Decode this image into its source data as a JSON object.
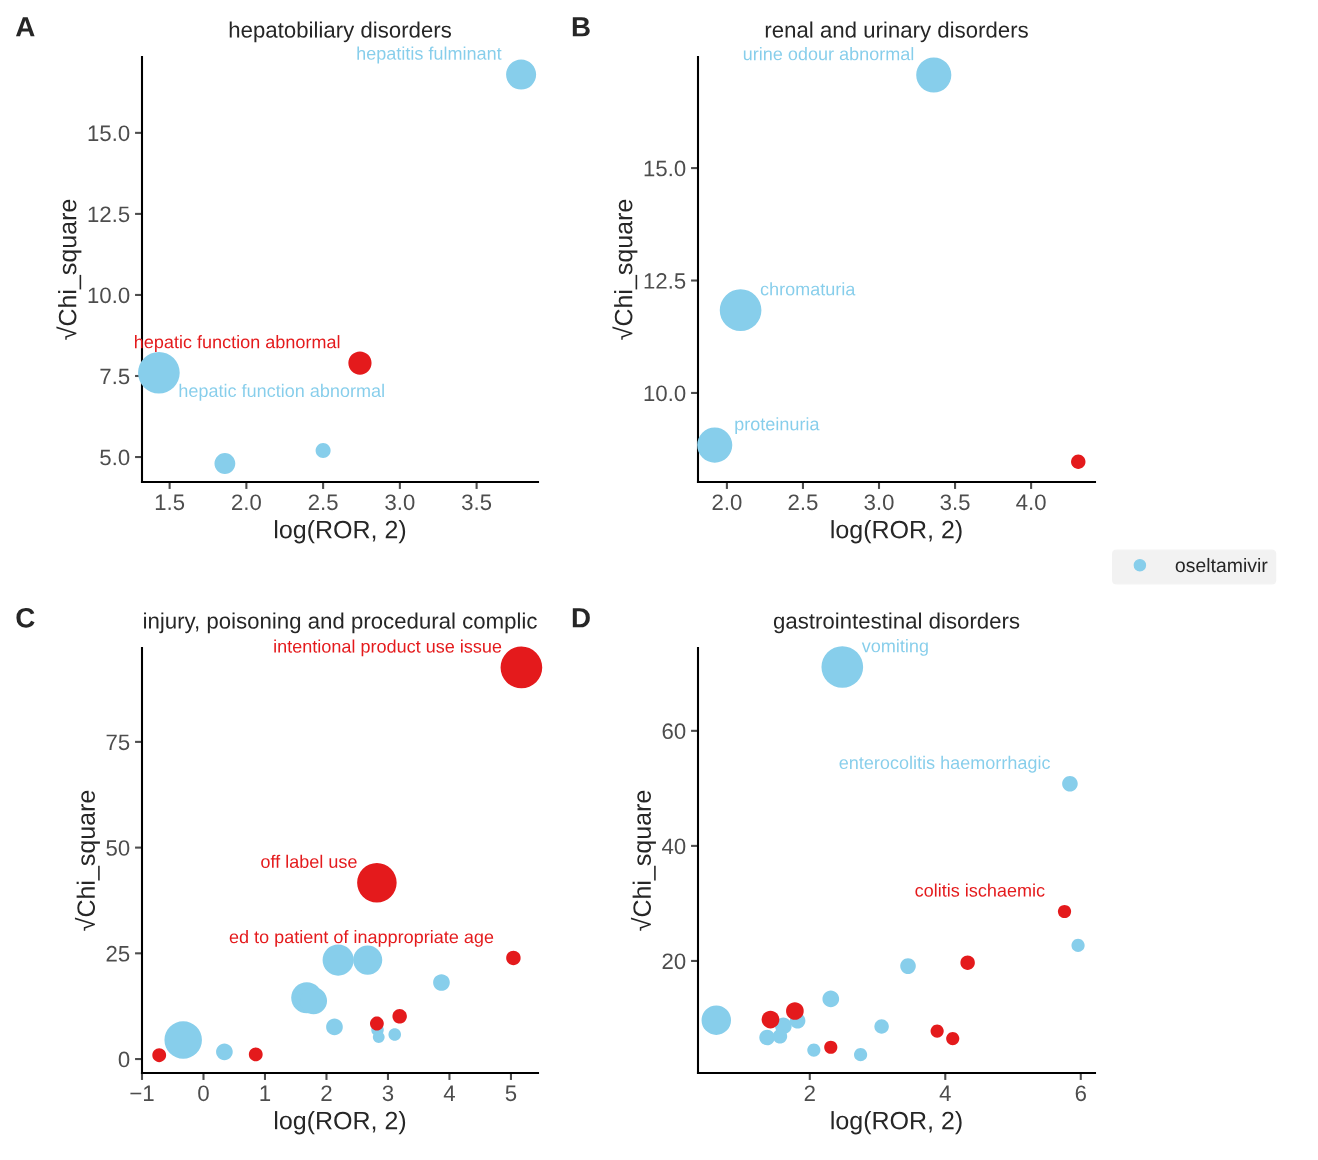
{
  "chart_data": [
    {
      "type": "bubble",
      "title": "hepatobiliary disorders",
      "xlabel": "log(ROR, 2)",
      "ylabel": "√Chi_square",
      "xlim": [
        1.32,
        3.9
      ],
      "xticks": [
        1.5,
        {
          "value": 2,
          "label": "2.0"
        },
        2.5,
        {
          "value": 3,
          "label": "3.0"
        },
        3.5
      ],
      "ylim": [
        4.23,
        17.34
      ],
      "yticks": [
        {
          "value": 5,
          "label": "5.0"
        },
        7.5,
        {
          "value": 10,
          "label": "10.0"
        },
        12.5,
        {
          "value": 15,
          "label": "15.0"
        }
      ],
      "grid": false,
      "series": [
        {
          "name": "oseltamivir",
          "color": "#87ceeb",
          "x": [
            1.43,
            1.86,
            2.5,
            3.79
          ],
          "values": [
            7.6,
            4.8,
            5.2,
            16.8
          ],
          "sizes": [
            1,
            0.25,
            0.13,
            0.52
          ]
        },
        {
          "color": "#e41a1c",
          "x": [
            2.74
          ],
          "values": [
            7.9
          ],
          "sizes": [
            0.31
          ]
        }
      ],
      "annotations": [
        "A",
        {
          "text": "hepatitis fulminant",
          "x": 3.79,
          "y": 16.8
        },
        {
          "text": "hepatic function abnormal",
          "x": 2.74,
          "y": 7.9
        },
        {
          "text": "hepatic function abnormal",
          "x": 1.43,
          "y": 7.6
        }
      ]
    },
    {
      "type": "bubble",
      "title": "renal and urinary disorders",
      "xlabel": "log(ROR, 2)",
      "ylabel": "√Chi_square",
      "xlim": [
        1.81,
        4.42
      ],
      "xticks": [
        {
          "value": 2,
          "label": "2.0"
        },
        2.5,
        {
          "value": 3,
          "label": "3.0"
        },
        3.5,
        {
          "value": 4,
          "label": "4.0"
        }
      ],
      "ylim": [
        8.02,
        17.47
      ],
      "yticks": [
        {
          "value": 10,
          "label": "10.0"
        },
        12.5,
        {
          "value": 15,
          "label": "15.0"
        }
      ],
      "grid": false,
      "legend": "right",
      "series": [
        {
          "name": "oseltamivir",
          "color": "#87ceeb",
          "x": [
            3.36,
            2.09,
            1.92
          ],
          "values": [
            17.07,
            11.84,
            8.84
          ],
          "sizes": [
            0.71,
            1,
            0.71
          ]
        },
        {
          "color": "#e41a1c",
          "x": [
            4.31
          ],
          "values": [
            8.47
          ],
          "sizes": [
            0.12
          ]
        }
      ],
      "annotations": [
        "B",
        {
          "text": "urine odour abnormal",
          "x": 3.36,
          "y": 17.07
        },
        {
          "text": "chromaturia",
          "x": 2.09,
          "y": 11.84
        },
        {
          "text": "proteinuria",
          "x": 1.92,
          "y": 8.84
        }
      ]
    },
    {
      "type": "bubble",
      "title": "injury, poisoning and procedural complic",
      "xlabel": "log(ROR, 2)",
      "ylabel": "√Chi_square",
      "xlim": [
        -1.0,
        5.44
      ],
      "xticks": [
        {
          "value": -1,
          "label": "−1"
        },
        0,
        1,
        2,
        3,
        4,
        5
      ],
      "ylim": [
        -3.3,
        97.2
      ],
      "yticks": [
        0,
        25,
        50,
        75
      ],
      "grid": false,
      "series": [
        {
          "name": "oseltamivir",
          "color": "#87ceeb",
          "x": [
            -0.33,
            0.34,
            1.68,
            1.79,
            2.19,
            2.67,
            2.13,
            2.83,
            2.85,
            3.11,
            3.87
          ],
          "values": [
            4.5,
            1.7,
            14.5,
            13.8,
            23.4,
            23.4,
            7.6,
            6.9,
            5.2,
            5.8,
            18.1
          ],
          "sizes": [
            0.81,
            0.16,
            0.56,
            0.42,
            0.56,
            0.49,
            0.16,
            0.09,
            0.08,
            0.09,
            0.16
          ]
        },
        {
          "color": "#e41a1c",
          "x": [
            -0.72,
            0.85,
            2.82,
            2.82,
            3.19,
            5.04,
            5.17
          ],
          "values": [
            0.9,
            1.1,
            41.7,
            8.4,
            10.1,
            23.9,
            92.6
          ],
          "sizes": [
            0.11,
            0.11,
            0.9,
            0.11,
            0.12,
            0.12,
            1
          ]
        }
      ],
      "annotations": [
        "C",
        {
          "text": "intentional product use issue",
          "x": 5.17,
          "y": 92.6
        },
        {
          "text": "off label use",
          "x": 2.82,
          "y": 41.7
        },
        {
          "text": "ed to patient of inappropriate age",
          "x": 5.04,
          "y": 23.9
        }
      ]
    },
    {
      "type": "bubble",
      "title": "gastrointestinal disorders",
      "xlabel": "log(ROR, 2)",
      "ylabel": "√Chi_square",
      "xlim": [
        0.35,
        6.21
      ],
      "xticks": [
        2,
        4,
        6
      ],
      "ylim": [
        0.52,
        74.4
      ],
      "yticks": [
        20,
        40,
        60
      ],
      "grid": false,
      "series": [
        {
          "name": "oseltamivir",
          "color": "#87ceeb",
          "x": [
            2.48,
            5.84,
            5.96,
            3.45,
            0.62,
            1.61,
            1.82,
            1.37,
            1.56,
            2.31,
            2.06,
            3.06,
            2.75
          ],
          "values": [
            71.1,
            50.8,
            22.7,
            19.1,
            9.7,
            8.7,
            9.6,
            6.7,
            6.9,
            13.4,
            4.5,
            8.6,
            3.7
          ],
          "sizes": [
            1,
            0.14,
            0.1,
            0.14,
            0.5,
            0.16,
            0.14,
            0.14,
            0.12,
            0.16,
            0.1,
            0.12,
            0.1
          ]
        },
        {
          "color": "#e41a1c",
          "x": [
            5.76,
            4.33,
            1.42,
            1.78,
            2.31,
            3.88,
            4.11
          ],
          "values": [
            28.6,
            19.7,
            9.8,
            11.3,
            5.0,
            7.8,
            6.5
          ],
          "sizes": [
            0.1,
            0.12,
            0.18,
            0.18,
            0.1,
            0.1,
            0.1
          ]
        }
      ],
      "annotations": [
        "D",
        {
          "text": "vomiting",
          "x": 2.48,
          "y": 71.1
        },
        {
          "text": "enterocolitis haemorrhagic",
          "x": 5.84,
          "y": 50.8
        },
        {
          "text": "colitis ischaemic",
          "x": 5.76,
          "y": 28.6
        }
      ]
    }
  ]
}
